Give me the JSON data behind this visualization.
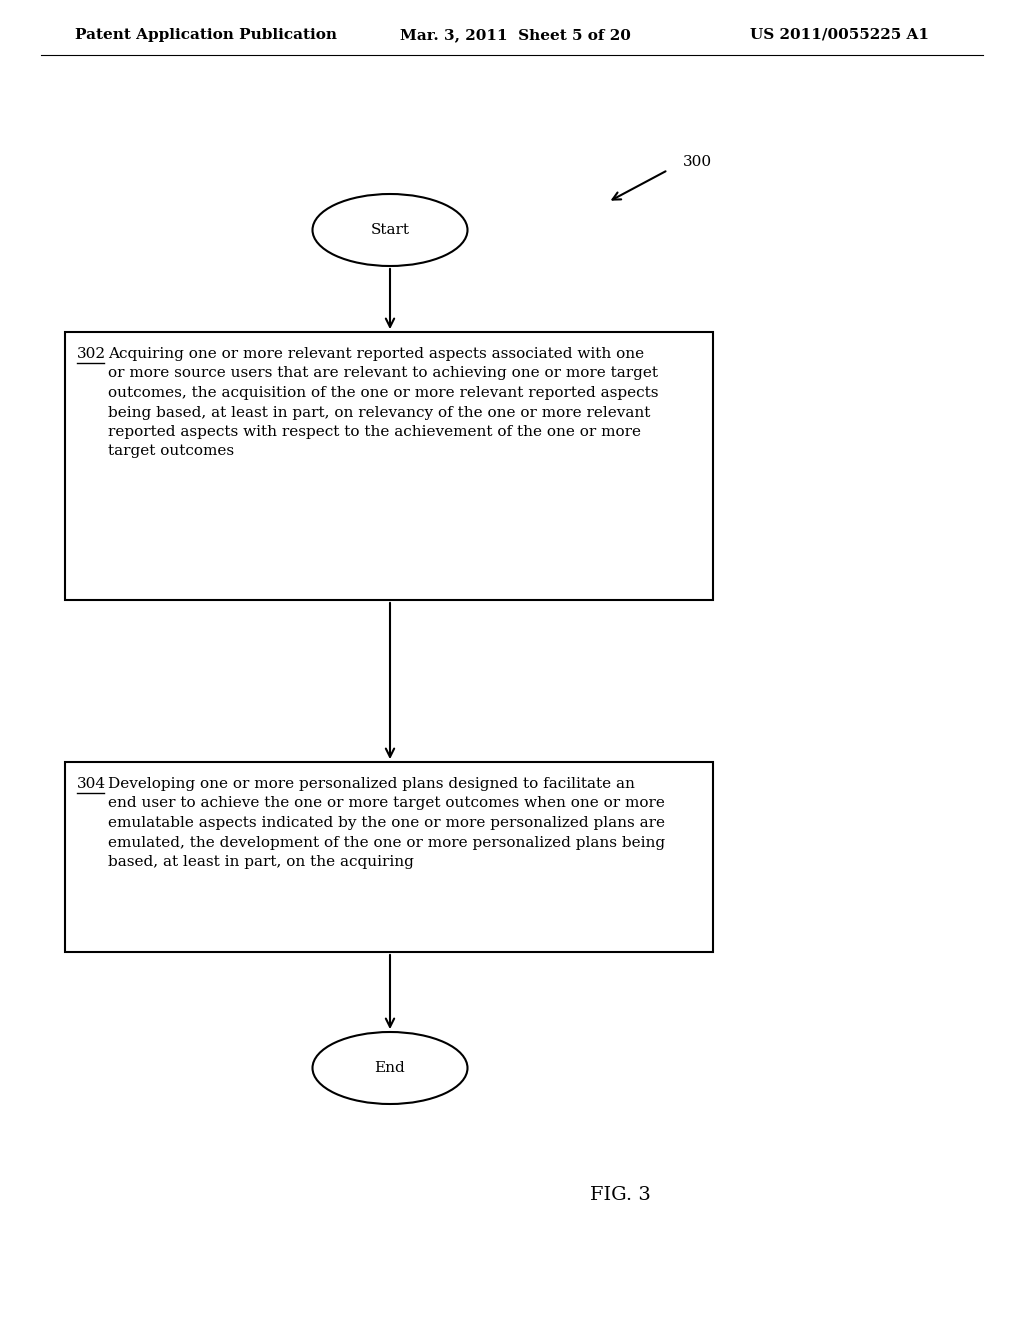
{
  "background_color": "#ffffff",
  "header_left": "Patent Application Publication",
  "header_mid": "Mar. 3, 2011  Sheet 5 of 20",
  "header_right": "US 2011/0055225 A1",
  "fig_label": "FIG. 3",
  "diagram_label": "300",
  "start_label": "Start",
  "end_label": "End",
  "box302_label": "302",
  "box302_text": "Acquiring one or more relevant reported aspects associated with one\nor more source users that are relevant to achieving one or more target\noutcomes, the acquisition of the one or more relevant reported aspects\nbeing based, at least in part, on relevancy of the one or more relevant\nreported aspects with respect to the achievement of the one or more\ntarget outcomes",
  "box304_label": "304",
  "box304_text": "Developing one or more personalized plans designed to facilitate an\nend user to achieve the one or more target outcomes when one or more\nemulatable aspects indicated by the one or more personalized plans are\nemulated, the development of the one or more personalized plans being\nbased, at least in part, on the acquiring",
  "text_color": "#000000",
  "line_color": "#000000",
  "font_size_header": 11,
  "font_size_body": 11,
  "font_size_label": 11,
  "font_size_fig": 14
}
